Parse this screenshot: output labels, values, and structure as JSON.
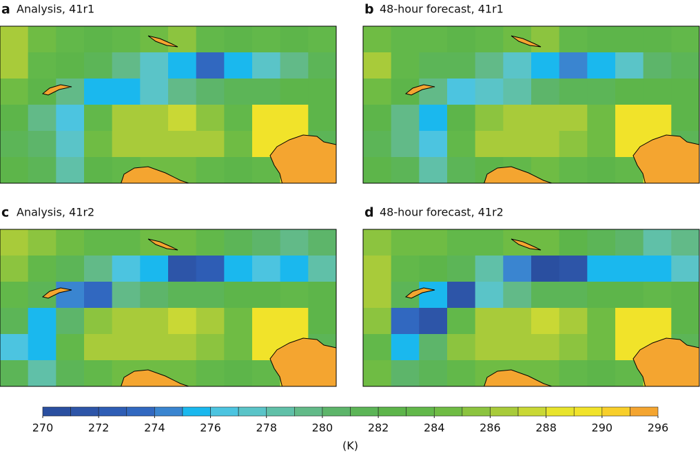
{
  "panels": [
    {
      "letter": "a",
      "title": "Analysis, 41r1",
      "field": [
        [
          289,
          287,
          286,
          285,
          286,
          287,
          288,
          286,
          285,
          286,
          285,
          286
        ],
        [
          290,
          286,
          285,
          283,
          281,
          279,
          277,
          274,
          276,
          279,
          281,
          284
        ],
        [
          287,
          285,
          281,
          277,
          277,
          279,
          281,
          282,
          283,
          284,
          285,
          285
        ],
        [
          285,
          281,
          278,
          286,
          289,
          290,
          291,
          288,
          286,
          293,
          293,
          285
        ],
        [
          284,
          282,
          279,
          287,
          289,
          290,
          289,
          289,
          287,
          293,
          293,
          284
        ],
        [
          285,
          284,
          280,
          285,
          286,
          287,
          287,
          286,
          285,
          286,
          293,
          285
        ]
      ]
    },
    {
      "letter": "b",
      "title": "48-hour forecast, 41r1",
      "field": [
        [
          287,
          286,
          286,
          285,
          286,
          287,
          288,
          286,
          285,
          285,
          285,
          286
        ],
        [
          289,
          286,
          284,
          283,
          281,
          279,
          276,
          275,
          277,
          279,
          282,
          284
        ],
        [
          287,
          285,
          281,
          278,
          279,
          280,
          282,
          283,
          284,
          285,
          285,
          285
        ],
        [
          285,
          281,
          277,
          285,
          288,
          290,
          290,
          289,
          287,
          293,
          293,
          285
        ],
        [
          284,
          281,
          278,
          286,
          289,
          290,
          289,
          288,
          287,
          293,
          293,
          284
        ],
        [
          285,
          284,
          280,
          284,
          285,
          286,
          287,
          286,
          285,
          286,
          293,
          285
        ]
      ]
    },
    {
      "letter": "c",
      "title": "Analysis, 41r2",
      "field": [
        [
          289,
          288,
          287,
          286,
          286,
          287,
          287,
          286,
          284,
          282,
          281,
          282
        ],
        [
          288,
          286,
          284,
          281,
          278,
          277,
          272,
          273,
          277,
          278,
          276,
          280
        ],
        [
          286,
          283,
          275,
          274,
          281,
          282,
          283,
          284,
          285,
          285,
          286,
          285
        ],
        [
          284,
          276,
          282,
          288,
          290,
          290,
          291,
          289,
          287,
          293,
          293,
          285
        ],
        [
          278,
          276,
          286,
          289,
          290,
          290,
          289,
          288,
          287,
          293,
          293,
          284
        ],
        [
          284,
          280,
          284,
          286,
          287,
          287,
          287,
          286,
          285,
          286,
          293,
          285
        ]
      ]
    },
    {
      "letter": "d",
      "title": "48-hour forecast, 41r2",
      "field": [
        [
          288,
          287,
          287,
          286,
          286,
          287,
          287,
          285,
          284,
          282,
          280,
          281
        ],
        [
          289,
          286,
          285,
          283,
          280,
          275,
          270,
          272,
          276,
          277,
          276,
          279
        ],
        [
          290,
          283,
          276,
          272,
          279,
          281,
          283,
          284,
          285,
          285,
          286,
          285
        ],
        [
          288,
          274,
          272,
          286,
          289,
          290,
          291,
          289,
          287,
          293,
          293,
          285
        ],
        [
          286,
          277,
          282,
          288,
          290,
          290,
          289,
          288,
          287,
          293,
          293,
          284
        ],
        [
          287,
          282,
          283,
          286,
          287,
          287,
          287,
          286,
          285,
          286,
          293,
          285
        ]
      ]
    }
  ],
  "colorbar": {
    "colors": [
      "#2a4fa0",
      "#2d55a8",
      "#2e5db5",
      "#3168c0",
      "#3a85d0",
      "#1ab8ee",
      "#4cc4e0",
      "#5ac4c8",
      "#60c0a8",
      "#62ba88",
      "#5db56a",
      "#5cb557",
      "#5db54a",
      "#62b84a",
      "#6fbc44",
      "#8cc43f",
      "#a8cb3a",
      "#c9d835",
      "#e8e42c",
      "#f1e32a",
      "#f8cf2a",
      "#f4a530"
    ],
    "ticks": [
      270,
      272,
      274,
      276,
      278,
      280,
      282,
      284,
      286,
      288,
      290,
      296
    ],
    "unit": "(K)"
  }
}
